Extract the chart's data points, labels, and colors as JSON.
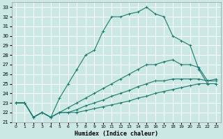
{
  "xlabel": "Humidex (Indice chaleur)",
  "bg_color": "#cce8e4",
  "grid_color": "#ffffff",
  "line_color": "#1a7a6e",
  "xlim": [
    -0.5,
    23.5
  ],
  "ylim": [
    21,
    33.5
  ],
  "xticks": [
    0,
    1,
    2,
    3,
    4,
    5,
    6,
    7,
    8,
    9,
    10,
    11,
    12,
    13,
    14,
    15,
    16,
    17,
    18,
    19,
    20,
    21,
    22,
    23
  ],
  "yticks": [
    21,
    22,
    23,
    24,
    25,
    26,
    27,
    28,
    29,
    30,
    31,
    32,
    33
  ],
  "curves": [
    {
      "x": [
        0,
        1,
        2,
        3,
        4,
        5,
        6,
        7,
        8,
        9,
        10,
        11,
        12,
        13,
        14,
        15,
        16,
        17,
        18,
        19,
        20,
        21,
        22,
        23
      ],
      "y": [
        23.0,
        23.0,
        21.5,
        22.0,
        21.5,
        23.5,
        25.0,
        26.5,
        28.0,
        28.5,
        30.5,
        32.0,
        32.0,
        32.3,
        32.5,
        33.0,
        32.3,
        32.0,
        30.0,
        29.5,
        29.0,
        26.5,
        25.0,
        25.0
      ]
    },
    {
      "x": [
        0,
        1,
        2,
        3,
        4,
        5,
        6,
        7,
        8,
        9,
        10,
        11,
        12,
        13,
        14,
        15,
        16,
        17,
        18,
        19,
        20,
        21,
        22,
        23
      ],
      "y": [
        23.0,
        23.0,
        21.5,
        22.0,
        21.5,
        22.0,
        22.5,
        23.0,
        23.5,
        24.0,
        24.5,
        25.0,
        25.5,
        26.0,
        26.5,
        27.0,
        27.0,
        27.3,
        27.5,
        27.0,
        27.0,
        26.7,
        25.3,
        25.5
      ]
    },
    {
      "x": [
        0,
        1,
        2,
        3,
        4,
        5,
        6,
        7,
        8,
        9,
        10,
        11,
        12,
        13,
        14,
        15,
        16,
        17,
        18,
        19,
        20,
        21,
        22,
        23
      ],
      "y": [
        23.0,
        23.0,
        21.5,
        22.0,
        21.5,
        22.0,
        22.0,
        22.3,
        22.7,
        23.0,
        23.3,
        23.7,
        24.0,
        24.3,
        24.7,
        25.0,
        25.3,
        25.3,
        25.5,
        25.5,
        25.5,
        25.5,
        25.3,
        25.3
      ]
    },
    {
      "x": [
        0,
        1,
        2,
        3,
        4,
        5,
        6,
        7,
        8,
        9,
        10,
        11,
        12,
        13,
        14,
        15,
        16,
        17,
        18,
        19,
        20,
        21,
        22,
        23
      ],
      "y": [
        23.0,
        23.0,
        21.5,
        22.0,
        21.5,
        22.0,
        22.0,
        22.0,
        22.2,
        22.4,
        22.6,
        22.8,
        23.0,
        23.2,
        23.5,
        23.7,
        24.0,
        24.2,
        24.4,
        24.6,
        24.8,
        25.0,
        25.0,
        25.0
      ]
    }
  ]
}
